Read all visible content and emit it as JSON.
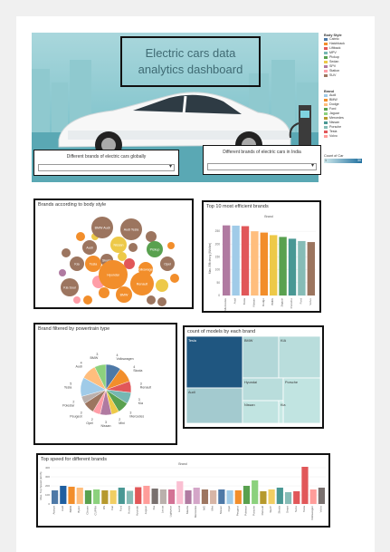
{
  "dashboard": {
    "title": "Electric cars data analytics dashboard",
    "filter_global_label": "Different brands of electric cars globally",
    "filter_india_label": "Different brands of electric cars in India"
  },
  "legends": {
    "body_style": {
      "title": "Body Style",
      "items": [
        {
          "label": "Cabrio",
          "color": "#4e79a7"
        },
        {
          "label": "Hatchback",
          "color": "#f28e2b"
        },
        {
          "label": "Liftback",
          "color": "#e15759"
        },
        {
          "label": "MPV",
          "color": "#76b7b2"
        },
        {
          "label": "Pickup",
          "color": "#59a14f"
        },
        {
          "label": "Sedan",
          "color": "#edc948"
        },
        {
          "label": "SPV",
          "color": "#b07aa1"
        },
        {
          "label": "Station",
          "color": "#ff9da7"
        },
        {
          "label": "SUV",
          "color": "#9c755f"
        }
      ]
    },
    "brand": {
      "title": "Brand",
      "items": [
        {
          "label": "Audi",
          "color": "#a0cbe8"
        },
        {
          "label": "BMW",
          "color": "#f28e2b"
        },
        {
          "label": "Dodge",
          "color": "#ffbe7d"
        },
        {
          "label": "Ford",
          "color": "#59a14f"
        },
        {
          "label": "Jaguar",
          "color": "#8cd17d"
        },
        {
          "label": "Mercedes",
          "color": "#b6992d"
        },
        {
          "label": "Nissan",
          "color": "#499894"
        },
        {
          "label": "Porsche",
          "color": "#86bcb6"
        },
        {
          "label": "Tesla",
          "color": "#e15759"
        },
        {
          "label": "Volvo",
          "color": "#ff9d9a"
        }
      ]
    },
    "count_of_car": {
      "title": "Count of Car",
      "min": "1",
      "max": "30"
    }
  },
  "bubble_panel": {
    "title": "Brands according to body style",
    "bubbles": [
      {
        "label": "BMW Audi",
        "color": "#9c755f"
      },
      {
        "label": "Audi Tesla",
        "color": "#9c755f"
      },
      {
        "label": "Nissan",
        "color": "#edc948"
      },
      {
        "label": "Audi",
        "color": "#9c755f"
      },
      {
        "label": "Kia",
        "color": "#9c755f"
      },
      {
        "label": "Tesla",
        "color": "#f28e2b"
      },
      {
        "label": "Skoda",
        "color": "#9c755f"
      },
      {
        "label": "Pickup",
        "color": "#59a14f"
      },
      {
        "label": "Volkswagen",
        "color": "#f28e2b"
      },
      {
        "label": "Hyundai",
        "color": "#f28e2b"
      },
      {
        "label": "Renault",
        "color": "#f28e2b"
      },
      {
        "label": "Kia Soul",
        "color": "#9c755f"
      },
      {
        "label": "BMW",
        "color": "#f28e2b"
      },
      {
        "label": "Opel",
        "color": "#9c755f"
      }
    ]
  },
  "efficiency_chart": {
    "chart_data": {
      "type": "bar",
      "title": "Top 10 most efficient brands",
      "legend_title": "Brand",
      "ylabel": "Max. Efficiency (Wh/km)",
      "categories": [
        "Mercedes",
        "Audi",
        "Tesla",
        "Nissan",
        "Dodge",
        "BMW",
        "Jaguar",
        "Porsche",
        "Ford",
        "Volvo"
      ],
      "values": [
        273,
        272,
        270,
        250,
        245,
        235,
        228,
        221,
        212,
        208
      ],
      "colors": [
        "#b07aa1",
        "#a0cbe8",
        "#e15759",
        "#ffbe7d",
        "#f28e2b",
        "#edc948",
        "#59a14f",
        "#499894",
        "#86bcb6",
        "#9c755f"
      ],
      "ylim": [
        0,
        300
      ],
      "yticks": [
        0,
        50,
        100,
        150,
        200,
        250
      ]
    }
  },
  "powertrain_chart": {
    "chart_data": {
      "type": "pie",
      "title": "Brand filtered by powertrain type",
      "labels": [
        "Volkswagen",
        "Skoda",
        "Renault",
        "Kia",
        "Mercedes",
        "Mini",
        "Nissan",
        "Opel",
        "Peugeot",
        "Polestar",
        "Tesla",
        "Audi",
        "BMW"
      ],
      "values": [
        4,
        4,
        3,
        3,
        3,
        2,
        3,
        2,
        3,
        2,
        5,
        4,
        3
      ],
      "colors": [
        "#4e79a7",
        "#f28e2b",
        "#e15759",
        "#76b7b2",
        "#59a14f",
        "#edc948",
        "#b07aa1",
        "#ff9da7",
        "#9c755f",
        "#bab0ac",
        "#a0cbe8",
        "#ffbe7d",
        "#8cd17d"
      ]
    }
  },
  "treemap_chart": {
    "chart_data": {
      "type": "heatmap",
      "title": "count of models by each brand",
      "labels": [
        "Tesla",
        "Audi",
        "BMW",
        "KIA",
        "Hyundai",
        "Nissan",
        "Porsche",
        "Kia"
      ],
      "values": [
        30,
        12,
        10,
        9,
        9,
        8,
        8,
        7
      ]
    }
  },
  "speed_chart": {
    "chart_data": {
      "type": "bar",
      "title": "Top speed for different brands",
      "legend_title": "Brand",
      "ylabel": "Max. Top Speed (km/h)",
      "categories": [
        "Aiways",
        "Audi",
        "BMW",
        "Byton",
        "Citroen",
        "CUPRA",
        "DS",
        "Fiat",
        "Ford",
        "Honda",
        "Hyundai",
        "Jaguar",
        "Kia",
        "Lexus",
        "Lightyear",
        "Lucid",
        "Mazda",
        "Mercedes",
        "MG",
        "Mini",
        "Nissan",
        "Opel",
        "Peugeot",
        "Polestar",
        "Porsche",
        "Renault",
        "SEAT",
        "Skoda",
        "Smart",
        "Sono",
        "Tesla",
        "Volkswagen",
        "Volvo"
      ],
      "values": [
        150,
        200,
        190,
        180,
        150,
        160,
        150,
        150,
        180,
        145,
        185,
        200,
        170,
        160,
        160,
        250,
        150,
        180,
        160,
        150,
        160,
        150,
        150,
        200,
        260,
        140,
        160,
        180,
        130,
        140,
        410,
        160,
        180
      ],
      "colors": [
        "#4e79a7",
        "#1f5fa0",
        "#f28e2b",
        "#ffbe7d",
        "#59a14f",
        "#8cd17d",
        "#b6992d",
        "#f1ce63",
        "#499894",
        "#86bcb6",
        "#e15759",
        "#ff9d9a",
        "#79706e",
        "#bab0ac",
        "#d37295",
        "#fabfd2",
        "#b07aa1",
        "#d4a6c8",
        "#9d7660",
        "#d7b5a6",
        "#4e79a7",
        "#a0cbe8",
        "#f28e2b",
        "#59a14f",
        "#8cd17d",
        "#b6992d",
        "#f1ce63",
        "#499894",
        "#86bcb6",
        "#e15759",
        "#e15759",
        "#ff9d9a",
        "#79706e"
      ],
      "ylim": [
        0,
        420
      ],
      "yticks": [
        0,
        100,
        200,
        300,
        400
      ]
    }
  }
}
